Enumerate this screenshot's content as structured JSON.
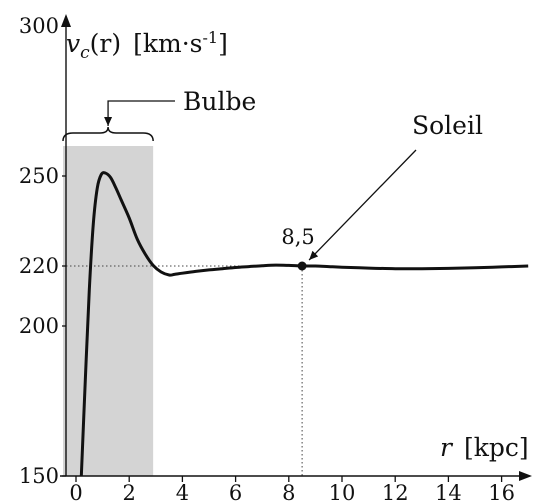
{
  "chart_data": {
    "type": "line",
    "title": "",
    "xlabel": "r [kpc]",
    "ylabel": "v_c(r) [km·s-1]",
    "xlabel_parts": {
      "var": "r",
      "unit": "[kpc]"
    },
    "ylabel_parts": {
      "var": "v",
      "sub": "c",
      "arg": "(r)",
      "unit": "[km·s",
      "exp": "-1",
      "close": "]"
    },
    "xlim": [
      0,
      17.3
    ],
    "ylim": [
      150,
      300
    ],
    "x_ticks": [
      0,
      2,
      4,
      6,
      8,
      10,
      12,
      14,
      16
    ],
    "y_ticks": [
      150,
      200,
      220,
      250,
      300
    ],
    "grid": false,
    "series": [
      {
        "x": [
          0.2,
          0.35,
          0.5,
          0.65,
          0.8,
          0.95,
          1.1,
          1.3,
          1.5,
          1.7,
          2.0,
          2.3,
          2.6,
          2.9,
          3.2,
          3.5,
          3.7,
          4.0,
          4.5,
          5.0,
          5.5,
          6.0,
          6.5,
          7.0,
          7.5,
          8.0,
          8.5,
          9.0,
          9.5,
          10.0,
          11.0,
          12.0,
          13.0,
          14.0,
          15.0,
          16.0,
          17.0
        ],
        "y": [
          150,
          182,
          212,
          234,
          246,
          250.5,
          251,
          249.5,
          246,
          242,
          236,
          229,
          224,
          220.2,
          218,
          217,
          217.2,
          217.6,
          218.2,
          218.7,
          219.1,
          219.5,
          219.8,
          220.1,
          220.3,
          220.2,
          220,
          220,
          219.8,
          219.6,
          219.3,
          219.1,
          219.1,
          219.2,
          219.4,
          219.7,
          220
        ]
      }
    ],
    "bulge": {
      "label": "Bulbe",
      "x_range": [
        0,
        2.9
      ]
    },
    "sun": {
      "label": "Soleil",
      "x": 8.5,
      "y": 220,
      "value_label": "8,5"
    }
  }
}
